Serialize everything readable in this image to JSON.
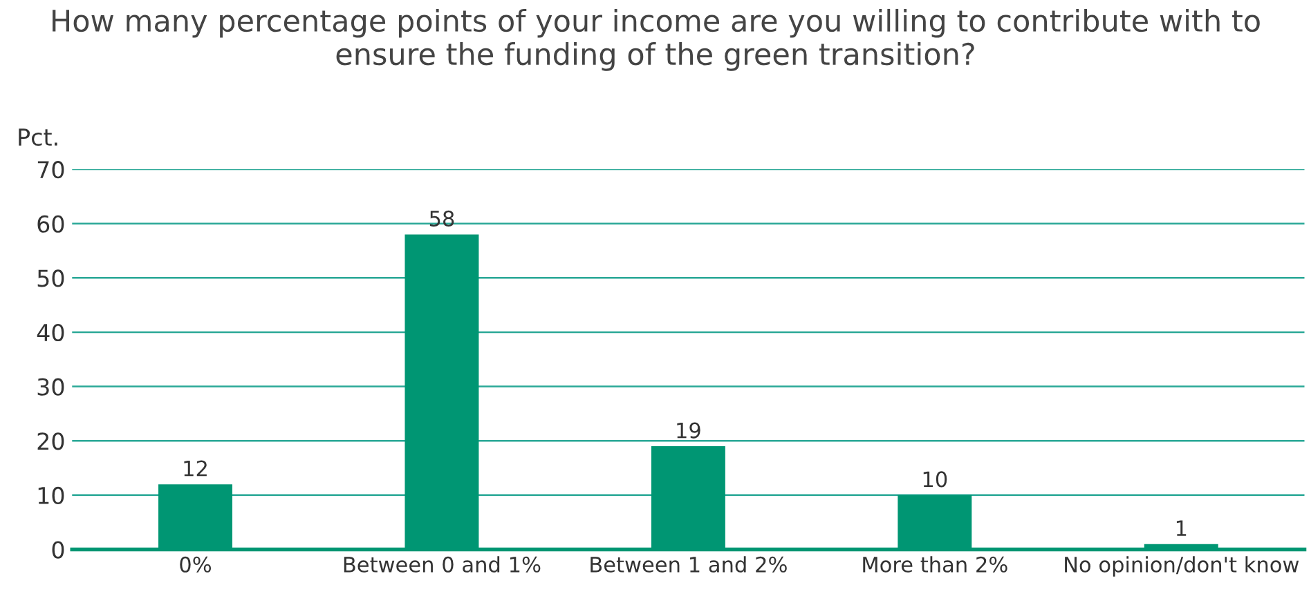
{
  "chart_data": {
    "type": "bar",
    "title": "How many percentage points of your income are you willing to contribute with to ensure the funding of the green transition?",
    "ylabel": "Pct.",
    "categories": [
      "0%",
      "Between 0 and 1%",
      "Between 1 and 2%",
      "More than 2%",
      "No opinion/don't know"
    ],
    "values": [
      12,
      58,
      19,
      10,
      1
    ],
    "color": "#009673",
    "ylim": [
      0,
      70
    ],
    "yticks": [
      0,
      10,
      20,
      30,
      40,
      50,
      60,
      70
    ],
    "grid": "y",
    "data_labels": true
  }
}
